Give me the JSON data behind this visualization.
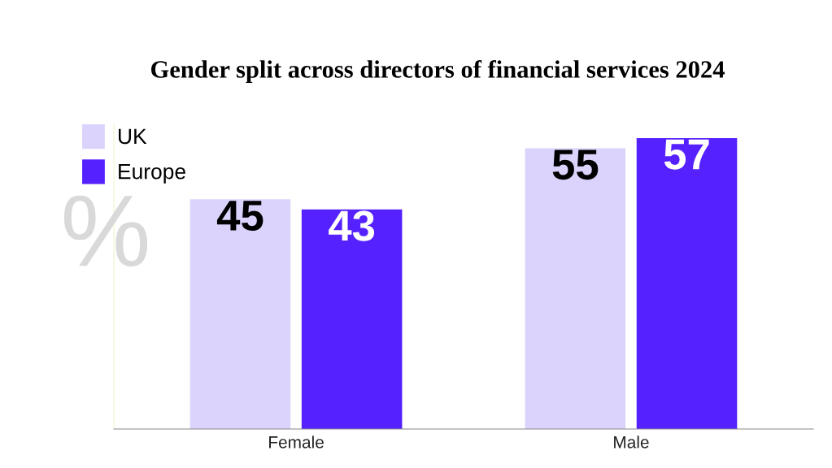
{
  "chart_data": {
    "type": "bar",
    "title": "Gender split across directors of financial services 2024",
    "ylabel": "%",
    "categories": [
      "Female",
      "Male"
    ],
    "series": [
      {
        "name": "UK",
        "color": "#dcd3fc",
        "values": [
          45,
          55
        ]
      },
      {
        "name": "Europe",
        "color": "#5522ff",
        "values": [
          43,
          57
        ]
      }
    ],
    "data_labels": true,
    "legend": "top left",
    "grid": false
  }
}
